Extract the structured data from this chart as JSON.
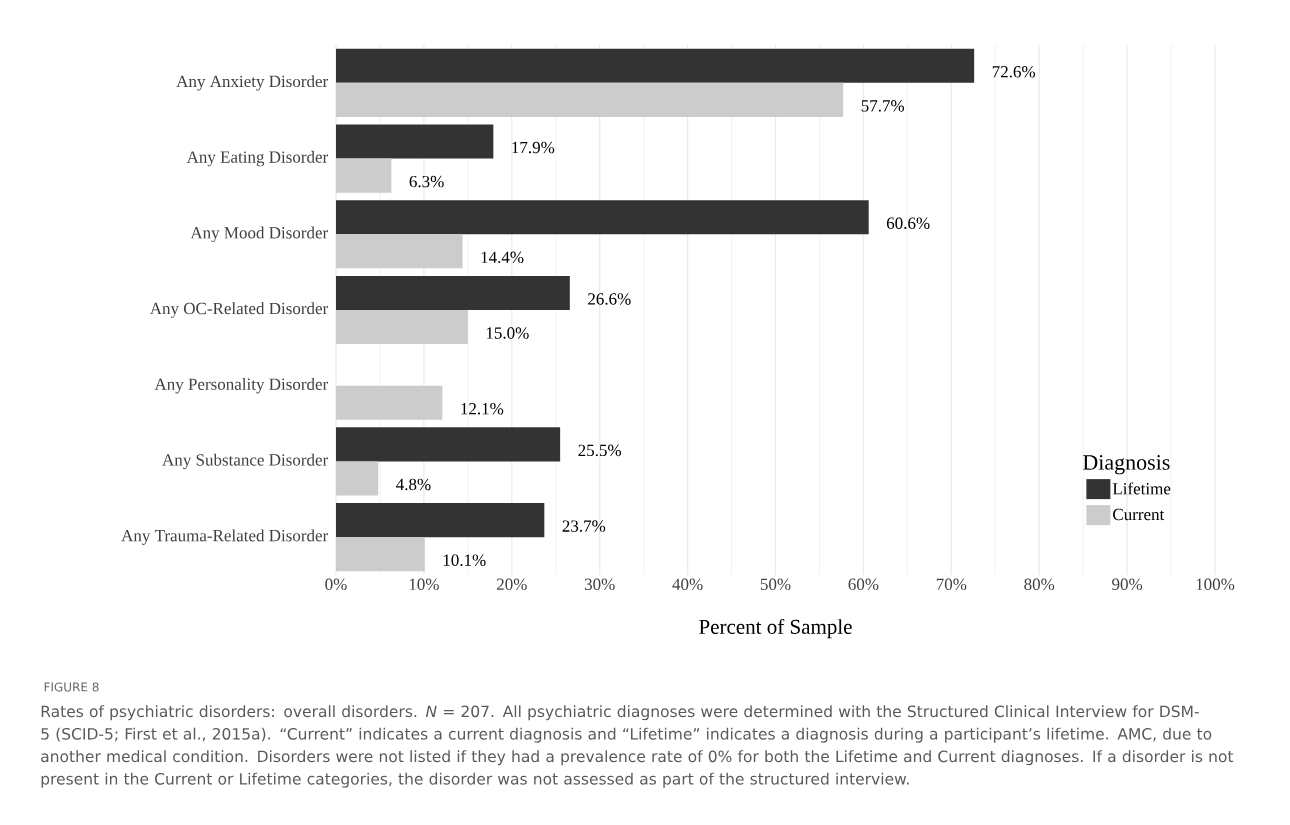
{
  "chart_data": {
    "type": "bar",
    "orientation": "horizontal",
    "xlabel": "Percent of Sample",
    "legend_title": "Diagnosis",
    "categories": [
      "Any Anxiety Disorder",
      "Any Eating Disorder",
      "Any Mood Disorder",
      "Any OC-Related Disorder",
      "Any Personality Disorder",
      "Any Substance Disorder",
      "Any Trauma-Related Disorder"
    ],
    "series": [
      {
        "name": "Lifetime",
        "color": "#333333",
        "values": [
          72.6,
          17.9,
          60.6,
          26.6,
          null,
          25.5,
          23.7
        ],
        "value_labels": [
          "72.6%",
          "17.9%",
          "60.6%",
          "26.6%",
          null,
          "25.5%",
          "23.7%"
        ]
      },
      {
        "name": "Current",
        "color": "#cccccc",
        "values": [
          57.7,
          6.3,
          14.4,
          15.0,
          12.1,
          4.8,
          10.1
        ],
        "value_labels": [
          "57.7%",
          "6.3%",
          "14.4%",
          "15.0%",
          "12.1%",
          "4.8%",
          "10.1%"
        ]
      }
    ],
    "xlim": [
      0,
      100
    ],
    "xticks": [
      {
        "value": 0,
        "label": "0%"
      },
      {
        "value": 10,
        "label": "10%"
      },
      {
        "value": 20,
        "label": "20%"
      },
      {
        "value": 30,
        "label": "30%"
      },
      {
        "value": 40,
        "label": "40%"
      },
      {
        "value": 50,
        "label": "50%"
      },
      {
        "value": 60,
        "label": "60%"
      },
      {
        "value": 70,
        "label": "70%"
      },
      {
        "value": 80,
        "label": "80%"
      },
      {
        "value": 90,
        "label": "90%"
      },
      {
        "value": 100,
        "label": "100%"
      }
    ],
    "grid": "x",
    "legend": "right",
    "annotations": [
      "FIGURE 8",
      "Rates of psychiatric disorders: overall disorders. *N* = 207. All psychiatric diagnoses were determined with the Structured Clinical Interview for DSM-5 (SCID-5; First et al., 2015a). “Current” indicates a current diagnosis and “Lifetime” indicates a diagnosis during a participant’s lifetime. AMC, due to another medical condition. Disorders were not listed if they had a prevalence rate of 0% for both the Lifetime and Current diagnoses. If a disorder is not present in the Current or Lifetime categories, the disorder was not assessed as part of the structured interview."
    ]
  }
}
